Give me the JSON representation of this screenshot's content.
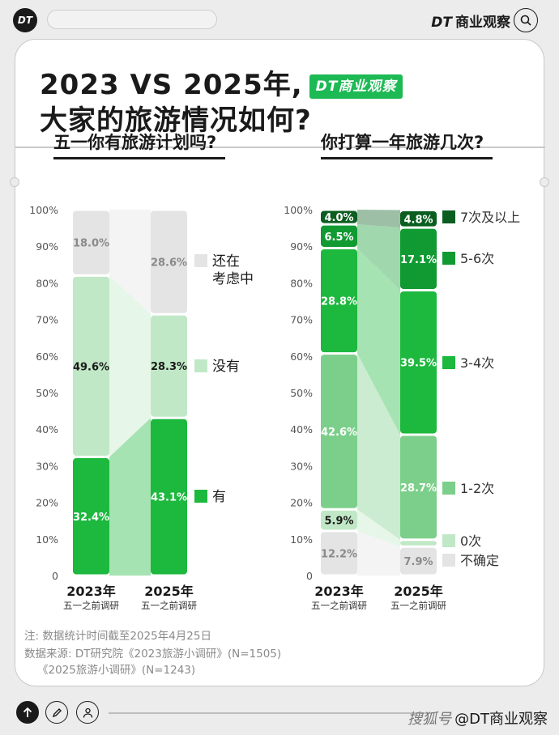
{
  "header": {
    "logo": "DT",
    "brand_logo": "DT",
    "brand_name": "商业观察",
    "icon": "search-icon"
  },
  "title": {
    "line1": "2023 VS 2025年,",
    "badge": "DT商业观察",
    "line2": "大家的旅游情况如何?"
  },
  "chart_data": [
    {
      "type": "bar",
      "stacked": true,
      "title": "五一你有旅游计划吗?",
      "categories": [
        "2023年",
        "2025年"
      ],
      "category_sublabels": [
        "五一之前调研",
        "五一之前调研"
      ],
      "ylim": [
        0,
        100
      ],
      "yticks": [
        "0",
        "10%",
        "20%",
        "30%",
        "40%",
        "50%",
        "60%",
        "70%",
        "80%",
        "90%",
        "100%"
      ],
      "series": [
        {
          "name": "有",
          "values": [
            32.4,
            43.1
          ],
          "labels": [
            "32.4%",
            "43.1%"
          ],
          "color": "#1db83e"
        },
        {
          "name": "没有",
          "values": [
            49.6,
            28.3
          ],
          "labels": [
            "49.6%",
            "28.3%"
          ],
          "color": "#c1e8c6"
        },
        {
          "name": "还在考虑中",
          "values": [
            18.0,
            28.6
          ],
          "labels": [
            "18.0%",
            "28.6%"
          ],
          "color": "#e4e4e4"
        }
      ]
    },
    {
      "type": "bar",
      "stacked": true,
      "title": "你打算一年旅游几次?",
      "categories": [
        "2023年",
        "2025年"
      ],
      "category_sublabels": [
        "五一之前调研",
        "五一之前调研"
      ],
      "ylim": [
        0,
        100
      ],
      "yticks": [
        "0",
        "10%",
        "20%",
        "30%",
        "40%",
        "50%",
        "60%",
        "70%",
        "80%",
        "90%",
        "100%"
      ],
      "series": [
        {
          "name": "不确定",
          "values": [
            12.2,
            7.9
          ],
          "labels": [
            "12.2%",
            "7.9%"
          ],
          "color": "#e4e4e4"
        },
        {
          "name": "0次",
          "values": [
            5.9,
            1.9
          ],
          "labels": [
            "5.9%",
            ""
          ],
          "color": "#c1e8c6"
        },
        {
          "name": "1-2次",
          "values": [
            42.6,
            28.7
          ],
          "labels": [
            "42.6%",
            "28.7%"
          ],
          "color": "#7ccf8a"
        },
        {
          "name": "3-4次",
          "values": [
            28.8,
            39.5
          ],
          "labels": [
            "28.8%",
            "39.5%"
          ],
          "color": "#1db83e"
        },
        {
          "name": "5-6次",
          "values": [
            6.5,
            17.1
          ],
          "labels": [
            "6.5%",
            "17.1%"
          ],
          "color": "#119a32"
        },
        {
          "name": "7次及以上",
          "values": [
            4.0,
            4.8
          ],
          "labels": [
            "4.0%",
            "4.8%"
          ],
          "color": "#0b5e20"
        }
      ]
    }
  ],
  "notes": {
    "note": "注: 数据统计时间截至2025年4月25日",
    "source1": "数据来源: DT研究院《2023旅游小调研》(N=1505)",
    "source2": "《2025旅游小调研》(N=1243)"
  },
  "footer": {
    "icons": [
      "arrow-up-icon",
      "pencil-icon",
      "user-icon"
    ],
    "brand_prefix": "搜狐号",
    "brand": "@DT商业观察"
  }
}
